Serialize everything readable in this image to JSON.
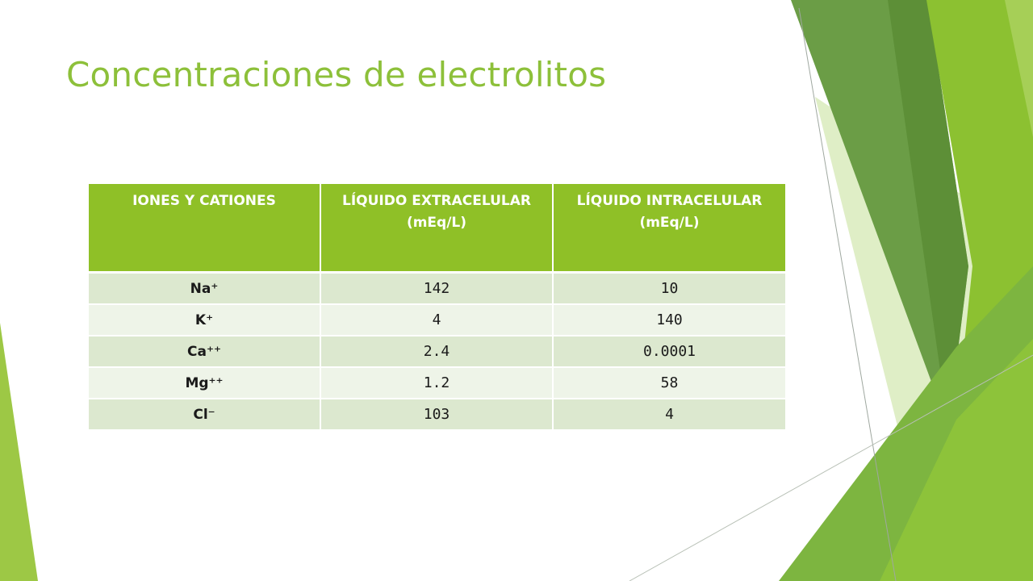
{
  "slide": {
    "title": "Concentraciones de electrolitos"
  },
  "table": {
    "headers": [
      "IONES Y CATIONES",
      "LÍQUIDO EXTRACELULAR (mEq/L)",
      "LÍQUIDO INTRACELULAR (mEq/L)"
    ],
    "rows": [
      {
        "ion": "Na⁺",
        "extracelular": "142",
        "intracelular": "10"
      },
      {
        "ion": "K⁺",
        "extracelular": "4",
        "intracelular": "140"
      },
      {
        "ion": "Ca⁺⁺",
        "extracelular": "2.4",
        "intracelular": "0.0001"
      },
      {
        "ion": "Mg⁺⁺",
        "extracelular": "1.2",
        "intracelular": "58"
      },
      {
        "ion": "Cl⁻",
        "extracelular": "103",
        "intracelular": "4"
      }
    ]
  },
  "theme": {
    "accent": "#8dc03a",
    "header_bg": "#8fc027",
    "row_light": "#eef4e8",
    "row_dark": "#dce8cf",
    "shape_dark_green": "#5e8f3b",
    "shape_bright_green": "#8cc131",
    "shape_pale_green": "#d6e9b4"
  }
}
